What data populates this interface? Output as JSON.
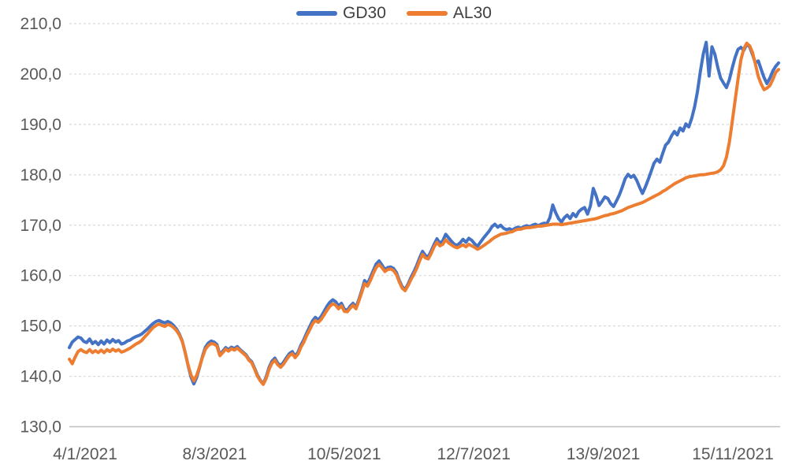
{
  "chart_data": {
    "type": "line",
    "title": "",
    "legend_position": "top-center",
    "grid": "horizontal-dashed",
    "x_axis": {
      "labels": [
        "4/1/2021",
        "8/3/2021",
        "10/5/2021",
        "12/7/2021",
        "13/9/2021",
        "15/11/2021"
      ],
      "date_format": "d/m/yyyy"
    },
    "y_axis": {
      "labels": [
        "210,0",
        "200,0",
        "190,0",
        "180,0",
        "170,0",
        "160,0",
        "150,0",
        "140,0",
        "130,0"
      ],
      "min": 130,
      "max": 210,
      "step": 10,
      "decimal_separator": ","
    },
    "ylim": [
      130,
      210
    ],
    "colors": {
      "gd30": "#4472C4",
      "al30": "#ED7D31",
      "gridline": "#D9D9D9",
      "axis_line": "#BFBFBF",
      "tick_text": "#595959"
    },
    "series": [
      {
        "name": "GD30",
        "color": "#4472C4",
        "values": [
          145.7,
          146.8,
          147.3,
          147.8,
          147.6,
          146.9,
          146.7,
          147.4,
          146.5,
          146.9,
          146.3,
          147.0,
          146.4,
          147.2,
          146.7,
          147.3,
          146.8,
          147.1,
          146.4,
          146.6,
          147.0,
          147.2,
          147.6,
          147.9,
          148.1,
          148.4,
          148.9,
          149.4,
          150.0,
          150.5,
          150.9,
          151.1,
          150.8,
          150.6,
          150.9,
          150.6,
          150.1,
          149.4,
          148.4,
          147.0,
          144.8,
          142.2,
          139.9,
          138.5,
          139.8,
          141.8,
          144.0,
          145.8,
          146.6,
          147.0,
          146.8,
          146.3,
          144.3,
          145.0,
          145.7,
          145.3,
          145.8,
          145.5,
          145.9,
          145.3,
          144.8,
          144.3,
          143.4,
          142.9,
          141.6,
          140.2,
          139.2,
          138.5,
          139.9,
          141.8,
          143.0,
          143.6,
          142.6,
          142.1,
          142.8,
          143.7,
          144.5,
          144.9,
          144.0,
          144.8,
          146.2,
          147.3,
          148.6,
          149.8,
          151.0,
          151.7,
          151.2,
          151.9,
          152.9,
          153.9,
          154.7,
          155.2,
          154.8,
          154.0,
          154.5,
          153.3,
          153.1,
          153.9,
          154.5,
          153.7,
          155.2,
          157.0,
          159.0,
          158.4,
          159.6,
          161.0,
          162.3,
          162.9,
          162.1,
          161.2,
          161.6,
          161.7,
          161.4,
          160.6,
          159.0,
          157.8,
          157.2,
          158.3,
          159.6,
          160.7,
          162.0,
          163.5,
          164.8,
          164.0,
          163.7,
          164.9,
          166.2,
          167.3,
          166.4,
          166.9,
          168.2,
          167.5,
          166.8,
          166.2,
          166.0,
          166.5,
          167.2,
          166.6,
          167.4,
          167.0,
          166.3,
          165.8,
          166.6,
          167.4,
          168.1,
          168.8,
          169.7,
          170.2,
          169.6,
          170.0,
          169.4,
          169.1,
          169.3,
          169.0,
          169.4,
          169.6,
          169.4,
          169.7,
          169.9,
          169.7,
          170.0,
          170.2,
          169.9,
          170.2,
          170.4,
          170.3,
          171.5,
          174.0,
          172.5,
          171.3,
          170.6,
          171.5,
          172.0,
          171.3,
          172.3,
          171.7,
          172.7,
          173.2,
          173.5,
          172.2,
          173.8,
          177.3,
          175.8,
          173.9,
          174.7,
          175.6,
          175.3,
          174.3,
          173.7,
          174.8,
          176.0,
          177.5,
          179.2,
          180.1,
          179.5,
          179.9,
          178.9,
          177.5,
          176.3,
          177.6,
          179.1,
          180.7,
          182.3,
          183.1,
          182.5,
          184.3,
          185.9,
          186.5,
          187.7,
          188.6,
          187.9,
          189.3,
          188.7,
          190.1,
          189.5,
          191.2,
          193.5,
          196.5,
          200.5,
          204.0,
          206.3,
          199.6,
          205.4,
          203.9,
          201.3,
          199.2,
          198.2,
          197.3,
          198.9,
          201.2,
          203.3,
          204.9,
          205.3,
          204.7,
          205.9,
          205.4,
          203.9,
          202.2,
          202.6,
          200.9,
          199.3,
          198.1,
          199.2,
          200.6,
          201.5,
          202.2
        ]
      },
      {
        "name": "AL30",
        "color": "#ED7D31",
        "values": [
          143.4,
          142.5,
          143.8,
          144.9,
          145.3,
          144.9,
          144.7,
          145.3,
          144.7,
          145.1,
          144.7,
          145.2,
          144.7,
          145.3,
          144.9,
          145.4,
          145.0,
          145.3,
          144.8,
          145.0,
          145.3,
          145.6,
          146.0,
          146.4,
          146.7,
          147.1,
          147.8,
          148.4,
          149.1,
          149.7,
          150.1,
          150.4,
          150.1,
          149.9,
          150.3,
          150.1,
          149.7,
          149.1,
          148.2,
          146.9,
          144.8,
          142.3,
          140.3,
          139.1,
          140.2,
          141.9,
          143.8,
          145.4,
          146.1,
          146.5,
          146.4,
          146.0,
          144.1,
          144.7,
          145.4,
          145.0,
          145.5,
          145.2,
          145.6,
          145.1,
          144.6,
          144.1,
          143.2,
          142.7,
          141.4,
          140.0,
          139.1,
          138.4,
          139.6,
          141.4,
          142.6,
          143.2,
          142.3,
          141.8,
          142.4,
          143.3,
          144.1,
          144.5,
          143.7,
          144.4,
          145.8,
          146.8,
          148.1,
          149.2,
          150.4,
          151.1,
          150.7,
          151.3,
          152.2,
          153.1,
          153.9,
          154.4,
          154.1,
          153.4,
          154.0,
          152.9,
          152.8,
          153.5,
          154.1,
          153.4,
          154.9,
          156.6,
          158.4,
          157.9,
          159.0,
          160.4,
          161.6,
          162.2,
          161.6,
          160.8,
          161.2,
          161.3,
          161.0,
          160.2,
          158.7,
          157.5,
          157.0,
          158.0,
          159.2,
          160.2,
          161.4,
          162.9,
          164.2,
          163.5,
          163.3,
          164.4,
          165.7,
          166.6,
          165.9,
          166.2,
          167.1,
          166.5,
          166.1,
          165.7,
          165.5,
          165.8,
          166.1,
          165.7,
          166.2,
          165.9,
          165.6,
          165.2,
          165.5,
          165.9,
          166.3,
          166.7,
          167.2,
          167.6,
          167.9,
          168.2,
          168.3,
          168.4,
          168.6,
          168.7,
          169.0,
          169.2,
          169.2,
          169.4,
          169.5,
          169.5,
          169.6,
          169.7,
          169.8,
          169.8,
          169.9,
          170.0,
          170.1,
          170.2,
          170.2,
          170.2,
          170.1,
          170.2,
          170.3,
          170.4,
          170.5,
          170.6,
          170.7,
          170.8,
          170.9,
          171.0,
          171.1,
          171.2,
          171.3,
          171.5,
          171.7,
          171.9,
          172.0,
          172.2,
          172.3,
          172.5,
          172.7,
          172.9,
          173.2,
          173.5,
          173.7,
          173.9,
          174.1,
          174.3,
          174.5,
          174.8,
          175.1,
          175.4,
          175.7,
          176.0,
          176.3,
          176.7,
          177.0,
          177.4,
          177.8,
          178.2,
          178.5,
          178.8,
          179.1,
          179.4,
          179.6,
          179.7,
          179.8,
          179.9,
          180.0,
          180.0,
          180.1,
          180.2,
          180.3,
          180.4,
          180.6,
          181.0,
          181.8,
          183.5,
          186.5,
          190.5,
          194.8,
          199.0,
          202.8,
          205.0,
          206.1,
          205.6,
          204.3,
          202.0,
          199.5,
          198.0,
          196.9,
          197.2,
          197.7,
          198.9,
          200.3,
          200.9
        ]
      }
    ]
  }
}
